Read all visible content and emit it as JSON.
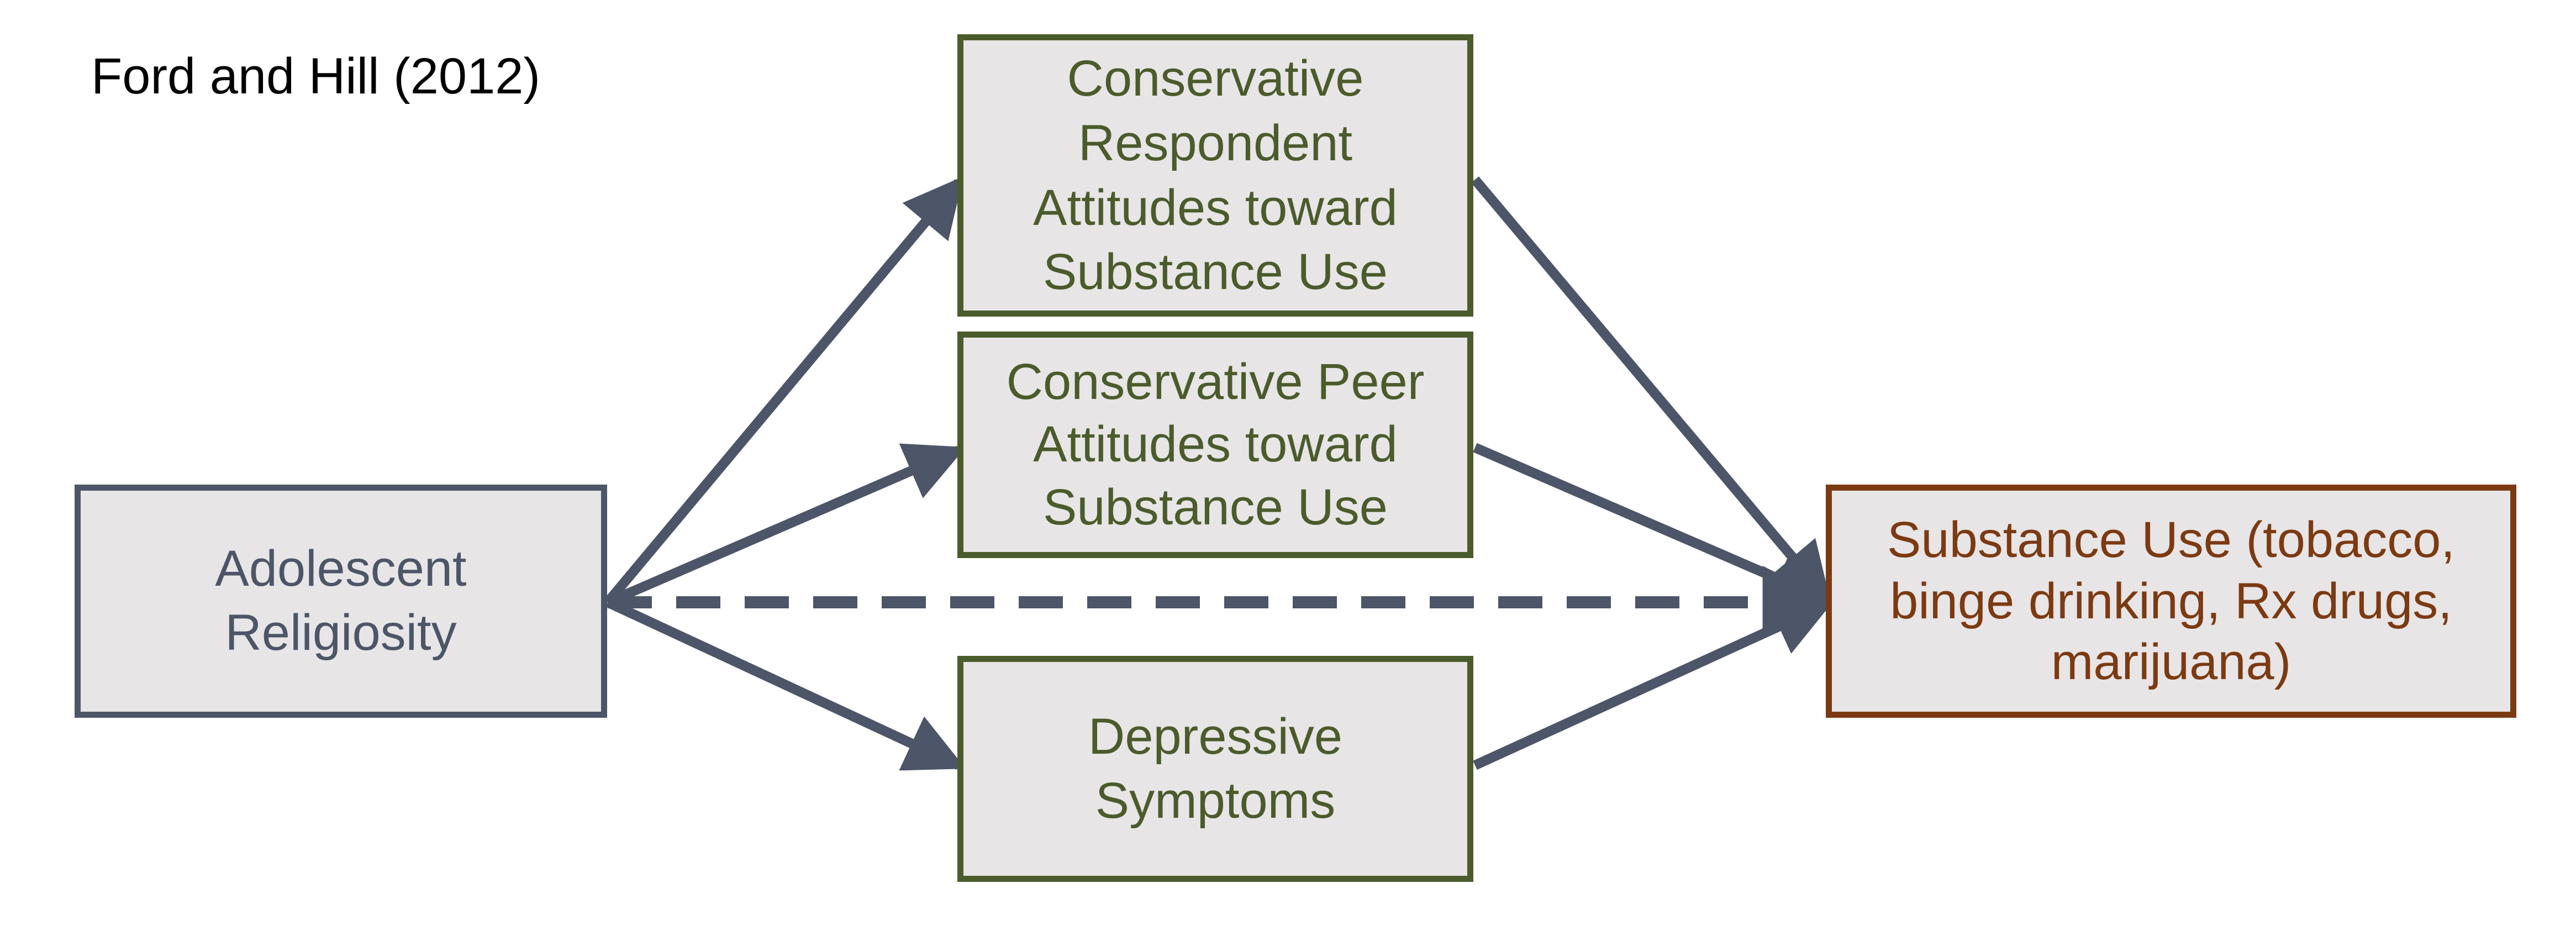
{
  "title": "Ford and Hill (2012)",
  "colors": {
    "mediator": "#4b5b2b",
    "predictor": "#4d5568",
    "outcome": "#7c3a12",
    "edge": "#4d5568",
    "node_fill": "#e7e5e6"
  },
  "nodes": {
    "religiosity": {
      "lines": [
        "Adolescent",
        "Religiosity"
      ]
    },
    "respondent_attitudes": {
      "lines": [
        "Conservative",
        "Respondent",
        "Attitudes toward",
        "Substance Use"
      ]
    },
    "peer_attitudes": {
      "lines": [
        "Conservative Peer",
        "Attitudes toward",
        "Substance Use"
      ]
    },
    "depressive": {
      "lines": [
        "Depressive",
        "Symptoms"
      ]
    },
    "substance_use": {
      "lines": [
        "Substance Use (tobacco,",
        "binge drinking, Rx drugs,",
        "marijuana)"
      ]
    }
  },
  "edges": [
    {
      "from": "religiosity",
      "to": "respondent_attitudes",
      "style": "solid"
    },
    {
      "from": "religiosity",
      "to": "peer_attitudes",
      "style": "solid"
    },
    {
      "from": "religiosity",
      "to": "depressive",
      "style": "solid"
    },
    {
      "from": "respondent_attitudes",
      "to": "substance_use",
      "style": "solid"
    },
    {
      "from": "peer_attitudes",
      "to": "substance_use",
      "style": "solid"
    },
    {
      "from": "depressive",
      "to": "substance_use",
      "style": "solid"
    },
    {
      "from": "religiosity",
      "to": "substance_use",
      "style": "dashed"
    }
  ]
}
